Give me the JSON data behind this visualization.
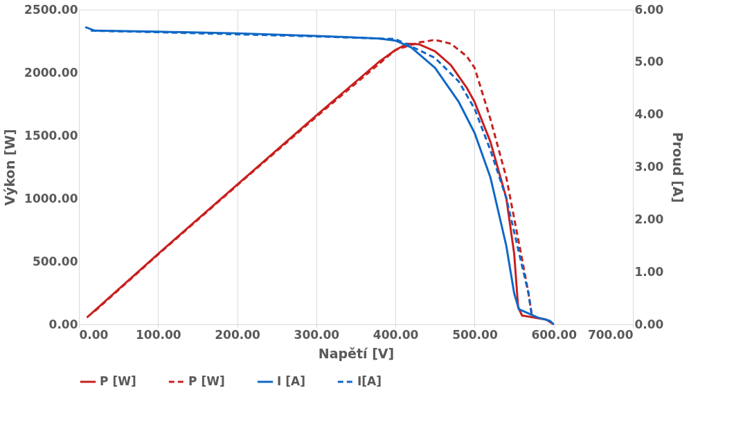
{
  "chart_data": {
    "type": "line",
    "xlabel": "Napětí [V]",
    "ylabel": "Výkon [W]",
    "y2label": "Proud [A]",
    "xlim": [
      0,
      700
    ],
    "xticks": [
      {
        "value": 0,
        "label": "0.00"
      },
      {
        "value": 100,
        "label": "100.00"
      },
      {
        "value": 200,
        "label": "200.00"
      },
      {
        "value": 300,
        "label": "300.00"
      },
      {
        "value": 400,
        "label": "400.00"
      },
      {
        "value": 500,
        "label": "500.00"
      },
      {
        "value": 600,
        "label": "600.00"
      },
      {
        "value": 700,
        "label": "700.00"
      }
    ],
    "ylim": [
      0,
      2500
    ],
    "yticks": [
      {
        "value": 0,
        "label": "0.00"
      },
      {
        "value": 500,
        "label": "500.00"
      },
      {
        "value": 1000,
        "label": "1000.00"
      },
      {
        "value": 1500,
        "label": "1500.00"
      },
      {
        "value": 2000,
        "label": "2000.00"
      },
      {
        "value": 2500,
        "label": "2500.00"
      }
    ],
    "y2lim": [
      0,
      6
    ],
    "y2ticks": [
      {
        "value": 0,
        "label": "0.00"
      },
      {
        "value": 1,
        "label": "1.00"
      },
      {
        "value": 2,
        "label": "2.00"
      },
      {
        "value": 3,
        "label": "3.00"
      },
      {
        "value": 4,
        "label": "4.00"
      },
      {
        "value": 5,
        "label": "5.00"
      },
      {
        "value": 6,
        "label": "6.00"
      }
    ],
    "grid": "x",
    "legend": "bottom",
    "marker": "none",
    "series": [
      {
        "name": "P [W]",
        "color": "#c8201f",
        "line_style": "solid",
        "axis": "y",
        "x": [
          10,
          100,
          200,
          300,
          380,
          400,
          415,
          430,
          450,
          470,
          490,
          500,
          520,
          540,
          550,
          555,
          560,
          580,
          590,
          600
        ],
        "values": [
          54,
          560,
          1110,
          1660,
          2090,
          2180,
          2230,
          2225,
          2170,
          2060,
          1880,
          1766,
          1450,
          1005,
          560,
          136,
          70,
          50,
          40,
          0
        ]
      },
      {
        "name": "P [W]",
        "color": "#c8201f",
        "line_style": "dashed",
        "axis": "y",
        "x": [
          20,
          100,
          200,
          300,
          400,
          430,
          450,
          470,
          490,
          500,
          520,
          540,
          560,
          568,
          572
        ],
        "values": [
          105,
          555,
          1105,
          1650,
          2180,
          2240,
          2260,
          2230,
          2130,
          2038,
          1630,
          1168,
          516,
          250,
          82
        ]
      },
      {
        "name": "I [A]",
        "color": "#1068c6",
        "line_style": "solid",
        "axis": "y2",
        "x": [
          8,
          20,
          100,
          200,
          300,
          380,
          400,
          420,
          450,
          480,
          500,
          520,
          540,
          550,
          556,
          580,
          595,
          600
        ],
        "values": [
          5.67,
          5.6,
          5.58,
          5.55,
          5.5,
          5.45,
          5.41,
          5.28,
          4.89,
          4.24,
          3.65,
          2.8,
          1.5,
          0.59,
          0.29,
          0.13,
          0.07,
          0.0
        ]
      },
      {
        "name": "I[A]",
        "color": "#1068c6",
        "line_style": "dashed",
        "axis": "y2",
        "x": [
          15,
          100,
          200,
          300,
          400,
          420,
          450,
          480,
          500,
          520,
          540,
          560,
          568,
          572
        ],
        "values": [
          5.6,
          5.57,
          5.53,
          5.49,
          5.44,
          5.3,
          5.08,
          4.63,
          4.11,
          3.32,
          2.41,
          1.11,
          0.6,
          0.2
        ]
      }
    ]
  }
}
